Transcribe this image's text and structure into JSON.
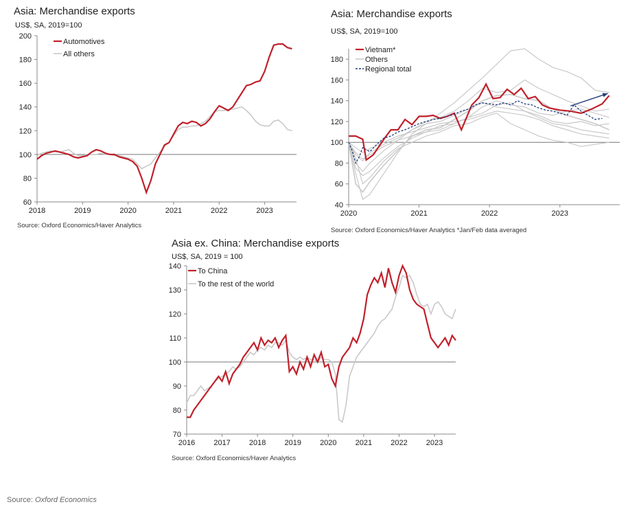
{
  "footer": {
    "source_prefix": "Source: ",
    "source_name": "Oxford Economics"
  },
  "colors": {
    "red": "#c0202a",
    "grey": "#c9c9c9",
    "navy": "#1f3a7a",
    "axis": "#888888"
  },
  "chart_data": [
    {
      "type": "line",
      "title": "Asia: Merchandise exports",
      "units": "US$, SA, 2019=100",
      "source": "Source: Oxford Economics/Haver Analytics",
      "xlim": [
        2018,
        2023.7
      ],
      "ylim": [
        60,
        200
      ],
      "yticks": [
        60,
        80,
        100,
        120,
        140,
        160,
        180,
        200
      ],
      "xticks": [
        2018,
        2019,
        2020,
        2021,
        2022,
        2023
      ],
      "baseline": 100,
      "legend": "top-left",
      "series": [
        {
          "name": "Automotives",
          "color": "red",
          "x": [
            2018.0,
            2018.1,
            2018.2,
            2018.3,
            2018.4,
            2018.5,
            2018.6,
            2018.7,
            2018.8,
            2018.9,
            2019.0,
            2019.1,
            2019.2,
            2019.3,
            2019.4,
            2019.5,
            2019.6,
            2019.7,
            2019.8,
            2019.9,
            2020.0,
            2020.1,
            2020.2,
            2020.3,
            2020.4,
            2020.5,
            2020.6,
            2020.7,
            2020.8,
            2020.9,
            2021.0,
            2021.1,
            2021.2,
            2021.3,
            2021.4,
            2021.5,
            2021.6,
            2021.7,
            2021.8,
            2021.9,
            2022.0,
            2022.1,
            2022.2,
            2022.3,
            2022.4,
            2022.5,
            2022.6,
            2022.7,
            2022.8,
            2022.9,
            2023.0,
            2023.1,
            2023.2,
            2023.3,
            2023.4,
            2023.5,
            2023.6
          ],
          "y": [
            96,
            99,
            101,
            102,
            103,
            102,
            101,
            100,
            98,
            97,
            98,
            99,
            102,
            104,
            103,
            101,
            100,
            100,
            98,
            97,
            96,
            94,
            90,
            80,
            68,
            78,
            92,
            100,
            108,
            110,
            117,
            124,
            127,
            126,
            128,
            127,
            124,
            126,
            130,
            136,
            141,
            139,
            137,
            140,
            146,
            152,
            158,
            159,
            161,
            162,
            170,
            182,
            192,
            193,
            193,
            190,
            189
          ]
        },
        {
          "name": "All others",
          "color": "grey",
          "x": [
            2018.0,
            2018.1,
            2018.2,
            2018.3,
            2018.4,
            2018.5,
            2018.6,
            2018.7,
            2018.8,
            2018.9,
            2019.0,
            2019.1,
            2019.2,
            2019.3,
            2019.4,
            2019.5,
            2019.6,
            2019.7,
            2019.8,
            2019.9,
            2020.0,
            2020.1,
            2020.2,
            2020.3,
            2020.4,
            2020.5,
            2020.6,
            2020.7,
            2020.8,
            2020.9,
            2021.0,
            2021.1,
            2021.2,
            2021.3,
            2021.4,
            2021.5,
            2021.6,
            2021.7,
            2021.8,
            2021.9,
            2022.0,
            2022.1,
            2022.2,
            2022.3,
            2022.4,
            2022.5,
            2022.6,
            2022.7,
            2022.8,
            2022.9,
            2023.0,
            2023.1,
            2023.2,
            2023.3,
            2023.4,
            2023.5,
            2023.6
          ],
          "y": [
            99,
            101,
            102,
            103,
            102,
            102,
            103,
            104,
            101,
            99,
            99,
            100,
            100,
            100,
            101,
            100,
            100,
            99,
            99,
            98,
            97,
            96,
            92,
            88,
            90,
            92,
            97,
            102,
            107,
            110,
            116,
            121,
            123,
            123,
            124,
            124,
            126,
            128,
            132,
            136,
            137,
            137,
            138,
            138,
            139,
            140,
            137,
            133,
            128,
            125,
            124,
            124,
            128,
            129,
            126,
            121,
            120
          ]
        }
      ]
    },
    {
      "type": "line",
      "title": "Asia: Merchandise exports",
      "units": "US$, SA, 2019=100",
      "source": "Source: Oxford Economics/Haver Analytics *Jan/Feb data averaged",
      "xlim": [
        2020,
        2023.85
      ],
      "ylim": [
        40,
        190
      ],
      "yticks": [
        40,
        60,
        80,
        100,
        120,
        140,
        160,
        180
      ],
      "xticks": [
        2020,
        2021,
        2022,
        2023
      ],
      "baseline": 100,
      "legend": "top-left",
      "series": [
        {
          "name": "Vietnam*",
          "color": "red",
          "x": [
            2020.0,
            2020.1,
            2020.2,
            2020.25,
            2020.35,
            2020.5,
            2020.6,
            2020.7,
            2020.8,
            2020.9,
            2021.0,
            2021.1,
            2021.2,
            2021.3,
            2021.4,
            2021.5,
            2021.6,
            2021.65,
            2021.75,
            2021.85,
            2021.95,
            2022.05,
            2022.15,
            2022.25,
            2022.35,
            2022.45,
            2022.55,
            2022.65,
            2022.75,
            2022.85,
            2023.0,
            2023.15,
            2023.3,
            2023.45,
            2023.6,
            2023.7
          ],
          "y": [
            106,
            106,
            103,
            83,
            88,
            103,
            112,
            112,
            122,
            117,
            125,
            125,
            126,
            123,
            125,
            128,
            112,
            120,
            136,
            143,
            156,
            142,
            143,
            151,
            146,
            152,
            142,
            144,
            136,
            133,
            131,
            130,
            128,
            132,
            137,
            145
          ]
        },
        {
          "name": "Others",
          "color": "grey",
          "x": [
            2020.0,
            2020.1,
            2020.2,
            2020.3,
            2020.5,
            2020.7,
            2020.9,
            2021.1,
            2021.3,
            2021.5,
            2021.7,
            2021.9,
            2022.1,
            2022.3,
            2022.5,
            2022.7,
            2022.9,
            2023.1,
            2023.3,
            2023.5,
            2023.7
          ],
          "y": [
            100,
            60,
            52,
            62,
            78,
            92,
            106,
            112,
            114,
            122,
            130,
            140,
            145,
            146,
            142,
            140,
            132,
            126,
            122,
            118,
            112
          ]
        },
        {
          "name": "Regional total",
          "color": "navy",
          "x": [
            2020.0,
            2020.05,
            2020.1,
            2020.15,
            2020.2,
            2020.3,
            2020.4,
            2020.5,
            2020.6,
            2020.7,
            2020.8,
            2020.9,
            2021.0,
            2021.1,
            2021.2,
            2021.3,
            2021.4,
            2021.5,
            2021.6,
            2021.7,
            2021.8,
            2021.9,
            2022.0,
            2022.1,
            2022.2,
            2022.3,
            2022.4,
            2022.5,
            2022.6,
            2022.7,
            2022.8,
            2022.9,
            2023.0,
            2023.1,
            2023.2,
            2023.3,
            2023.4,
            2023.5,
            2023.6
          ],
          "y": [
            100,
            92,
            80,
            86,
            95,
            91,
            98,
            104,
            106,
            110,
            112,
            115,
            118,
            120,
            122,
            123,
            125,
            127,
            130,
            132,
            136,
            138,
            137,
            136,
            138,
            136,
            140,
            137,
            136,
            133,
            131,
            130,
            128,
            126,
            136,
            130,
            126,
            122,
            123
          ]
        }
      ],
      "background_series_y": [
        [
          100,
          70,
          45,
          50,
          70,
          90,
          108,
          118,
          128,
          138,
          150,
          162,
          175,
          188,
          190,
          180,
          172,
          168,
          162,
          150,
          148
        ],
        [
          100,
          80,
          72,
          80,
          92,
          102,
          112,
          120,
          124,
          130,
          140,
          152,
          148,
          150,
          160,
          152,
          146,
          140,
          135,
          130,
          132
        ],
        [
          100,
          88,
          82,
          90,
          98,
          104,
          112,
          118,
          120,
          126,
          132,
          138,
          134,
          132,
          130,
          126,
          120,
          118,
          120,
          116,
          118
        ],
        [
          100,
          75,
          68,
          72,
          85,
          96,
          104,
          110,
          116,
          118,
          124,
          128,
          136,
          138,
          130,
          124,
          118,
          116,
          112,
          110,
          108
        ],
        [
          100,
          95,
          90,
          94,
          100,
          106,
          110,
          114,
          118,
          120,
          122,
          126,
          130,
          128,
          126,
          122,
          116,
          112,
          108,
          106,
          104
        ],
        [
          100,
          85,
          60,
          66,
          82,
          94,
          100,
          106,
          110,
          116,
          118,
          124,
          128,
          118,
          112,
          106,
          102,
          100,
          96,
          98,
          100
        ],
        [
          100,
          90,
          84,
          88,
          96,
          102,
          106,
          110,
          112,
          118,
          124,
          134,
          140,
          136,
          134,
          128,
          126,
          130,
          132,
          128,
          124
        ]
      ]
    },
    {
      "type": "line",
      "title": "Asia ex. China: Merchandise exports",
      "units": "US$, SA, 2019 = 100",
      "source": "Source: Oxford Economics/Haver Analytics",
      "xlim": [
        2016,
        2023.6
      ],
      "ylim": [
        70,
        140
      ],
      "yticks": [
        70,
        80,
        90,
        100,
        110,
        120,
        130,
        140
      ],
      "xticks": [
        2016,
        2017,
        2018,
        2019,
        2020,
        2021,
        2022,
        2023
      ],
      "baseline": 100,
      "legend": "top-left",
      "series": [
        {
          "name": "To China",
          "color": "red",
          "x": [
            2016.0,
            2016.1,
            2016.2,
            2016.3,
            2016.4,
            2016.5,
            2016.6,
            2016.7,
            2016.8,
            2016.9,
            2017.0,
            2017.1,
            2017.2,
            2017.3,
            2017.4,
            2017.5,
            2017.6,
            2017.7,
            2017.8,
            2017.9,
            2018.0,
            2018.1,
            2018.2,
            2018.3,
            2018.4,
            2018.5,
            2018.6,
            2018.7,
            2018.8,
            2018.9,
            2019.0,
            2019.1,
            2019.2,
            2019.3,
            2019.4,
            2019.5,
            2019.6,
            2019.7,
            2019.8,
            2019.9,
            2020.0,
            2020.1,
            2020.2,
            2020.3,
            2020.4,
            2020.5,
            2020.6,
            2020.7,
            2020.8,
            2020.9,
            2021.0,
            2021.1,
            2021.2,
            2021.3,
            2021.4,
            2021.5,
            2021.6,
            2021.7,
            2021.8,
            2021.9,
            2022.0,
            2022.1,
            2022.2,
            2022.3,
            2022.4,
            2022.5,
            2022.6,
            2022.7,
            2022.8,
            2022.9,
            2023.0,
            2023.1,
            2023.2,
            2023.3,
            2023.4,
            2023.5,
            2023.6
          ],
          "y": [
            77,
            77,
            80,
            82,
            84,
            86,
            88,
            90,
            92,
            94,
            92,
            96,
            91,
            95,
            97,
            99,
            102,
            104,
            106,
            108,
            105,
            110,
            107,
            109,
            108,
            110,
            106,
            109,
            111,
            96,
            98,
            95,
            100,
            97,
            102,
            98,
            103,
            100,
            104,
            98,
            99,
            93,
            90,
            98,
            102,
            104,
            106,
            110,
            108,
            112,
            118,
            128,
            132,
            135,
            133,
            137,
            131,
            139,
            133,
            129,
            136,
            140,
            137,
            130,
            126,
            124,
            123,
            122,
            116,
            110,
            108,
            106,
            108,
            110,
            107,
            111,
            109
          ]
        },
        {
          "name": "To the rest of the world",
          "color": "grey",
          "x": [
            2016.0,
            2016.1,
            2016.2,
            2016.3,
            2016.4,
            2016.5,
            2016.6,
            2016.7,
            2016.8,
            2016.9,
            2017.0,
            2017.1,
            2017.2,
            2017.3,
            2017.4,
            2017.5,
            2017.6,
            2017.7,
            2017.8,
            2017.9,
            2018.0,
            2018.1,
            2018.2,
            2018.3,
            2018.4,
            2018.5,
            2018.6,
            2018.7,
            2018.8,
            2018.9,
            2019.0,
            2019.1,
            2019.2,
            2019.3,
            2019.4,
            2019.5,
            2019.6,
            2019.7,
            2019.8,
            2019.9,
            2020.0,
            2020.1,
            2020.2,
            2020.3,
            2020.4,
            2020.5,
            2020.6,
            2020.7,
            2020.8,
            2020.9,
            2021.0,
            2021.1,
            2021.2,
            2021.3,
            2021.4,
            2021.5,
            2021.6,
            2021.7,
            2021.8,
            2021.9,
            2022.0,
            2022.1,
            2022.2,
            2022.3,
            2022.4,
            2022.5,
            2022.6,
            2022.7,
            2022.8,
            2022.9,
            2023.0,
            2023.1,
            2023.2,
            2023.3,
            2023.4,
            2023.5,
            2023.6
          ],
          "y": [
            83,
            86,
            86,
            88,
            90,
            88,
            89,
            90,
            92,
            93,
            94,
            95,
            96,
            98,
            97,
            98,
            100,
            102,
            104,
            103,
            105,
            106,
            105,
            107,
            106,
            108,
            108,
            107,
            109,
            104,
            102,
            101,
            102,
            101,
            102,
            101,
            101,
            100,
            102,
            101,
            101,
            100,
            95,
            76,
            75,
            82,
            94,
            98,
            102,
            104,
            106,
            108,
            110,
            112,
            115,
            117,
            118,
            120,
            122,
            127,
            131,
            136,
            135,
            136,
            133,
            128,
            124,
            123,
            124,
            120,
            124,
            125,
            123,
            120,
            119,
            118,
            122
          ]
        }
      ]
    }
  ]
}
